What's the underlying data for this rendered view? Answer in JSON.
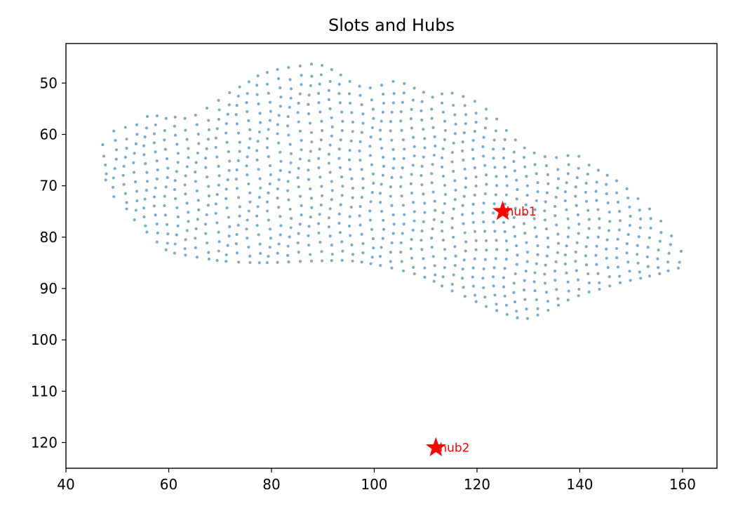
{
  "chart_data": {
    "type": "scatter",
    "title": "Slots and Hubs",
    "xlabel": "",
    "ylabel": "",
    "xlim": [
      40.0,
      166.7
    ],
    "ylim": [
      125.0,
      42.3
    ],
    "y_inverted": true,
    "grid": false,
    "x_ticks": [
      40,
      60,
      80,
      100,
      120,
      140,
      160
    ],
    "y_ticks": [
      50,
      60,
      70,
      80,
      90,
      100,
      110,
      120
    ],
    "colors": {
      "slots": "#1f77b4",
      "hubs": "#ff0000"
    },
    "slots": {
      "description_note": "",
      "lower_boundary": [
        [
          45.5,
          65.0
        ],
        [
          47.0,
          68.0
        ],
        [
          49.0,
          71.5
        ],
        [
          51.0,
          74.0
        ],
        [
          53.0,
          76.0
        ],
        [
          55.0,
          78.5
        ],
        [
          57.0,
          80.5
        ],
        [
          59.0,
          82.3
        ],
        [
          61.0,
          83.0
        ],
        [
          64.0,
          83.6
        ],
        [
          67.0,
          84.2
        ],
        [
          70.0,
          84.6
        ],
        [
          74.0,
          84.9
        ],
        [
          78.0,
          85.0
        ],
        [
          82.0,
          84.9
        ],
        [
          86.0,
          84.7
        ],
        [
          90.0,
          84.6
        ],
        [
          94.0,
          84.5
        ],
        [
          98.0,
          84.9
        ],
        [
          102.0,
          85.6
        ],
        [
          106.0,
          86.7
        ],
        [
          109.0,
          87.6
        ],
        [
          112.0,
          88.8
        ],
        [
          115.0,
          90.2
        ],
        [
          118.0,
          91.8
        ],
        [
          121.0,
          93.3
        ],
        [
          124.0,
          94.5
        ],
        [
          127.0,
          95.6
        ],
        [
          129.0,
          96.0
        ],
        [
          132.0,
          95.0
        ],
        [
          135.0,
          93.5
        ],
        [
          138.0,
          92.0
        ],
        [
          141.0,
          90.8
        ],
        [
          144.0,
          90.0
        ],
        [
          147.0,
          89.0
        ],
        [
          150.0,
          88.3
        ],
        [
          153.0,
          87.7
        ],
        [
          156.0,
          87.0
        ],
        [
          158.0,
          86.4
        ],
        [
          160.0,
          85.9
        ],
        [
          161.0,
          85.8
        ]
      ],
      "upper_boundary": [
        [
          45.5,
          65.0
        ],
        [
          46.5,
          64.0
        ],
        [
          47.5,
          62.0
        ],
        [
          48.5,
          60.0
        ],
        [
          50.0,
          59.0
        ],
        [
          52.0,
          58.5
        ],
        [
          54.0,
          58.0
        ],
        [
          56.0,
          56.0
        ],
        [
          58.0,
          56.5
        ],
        [
          60.0,
          57.0
        ],
        [
          62.0,
          56.5
        ],
        [
          64.0,
          57.0
        ],
        [
          66.0,
          56.0
        ],
        [
          68.0,
          54.5
        ],
        [
          70.0,
          53.0
        ],
        [
          72.0,
          51.5
        ],
        [
          74.0,
          50.5
        ],
        [
          76.0,
          49.5
        ],
        [
          78.0,
          48.3
        ],
        [
          80.0,
          47.8
        ],
        [
          82.0,
          47.2
        ],
        [
          84.0,
          46.9
        ],
        [
          86.0,
          46.6
        ],
        [
          88.0,
          46.2
        ],
        [
          90.0,
          46.7
        ],
        [
          92.0,
          47.6
        ],
        [
          94.0,
          48.7
        ],
        [
          96.0,
          50.0
        ],
        [
          98.0,
          50.8
        ],
        [
          100.0,
          51.0
        ],
        [
          102.0,
          50.2
        ],
        [
          104.0,
          49.5
        ],
        [
          106.0,
          50.3
        ],
        [
          108.0,
          51.2
        ],
        [
          110.0,
          52.0
        ],
        [
          112.0,
          53.0
        ],
        [
          114.0,
          51.8
        ],
        [
          116.0,
          52.0
        ],
        [
          118.0,
          52.8
        ],
        [
          120.0,
          53.8
        ],
        [
          122.0,
          55.5
        ],
        [
          124.0,
          57.5
        ],
        [
          126.0,
          59.8
        ],
        [
          128.0,
          61.5
        ],
        [
          130.0,
          63.0
        ],
        [
          132.0,
          63.8
        ],
        [
          134.0,
          64.5
        ],
        [
          136.0,
          64.5
        ],
        [
          138.0,
          64.0
        ],
        [
          139.0,
          63.5
        ],
        [
          140.0,
          65.0
        ],
        [
          142.0,
          66.3
        ],
        [
          144.0,
          67.2
        ],
        [
          146.0,
          68.2
        ],
        [
          148.0,
          69.3
        ],
        [
          150.0,
          71.0
        ],
        [
          152.0,
          73.0
        ],
        [
          154.0,
          75.0
        ],
        [
          156.0,
          77.5
        ],
        [
          158.0,
          80.5
        ],
        [
          160.0,
          83.5
        ],
        [
          161.0,
          85.8
        ]
      ],
      "spacing_x": 2.0,
      "spacing_y": 1.8,
      "marker_radius": 2.1,
      "opacity": 0.6
    },
    "hubs": [
      {
        "name": "hub1",
        "x": 125.0,
        "y": 75.0
      },
      {
        "name": "hub2",
        "x": 112.0,
        "y": 121.0
      }
    ]
  }
}
